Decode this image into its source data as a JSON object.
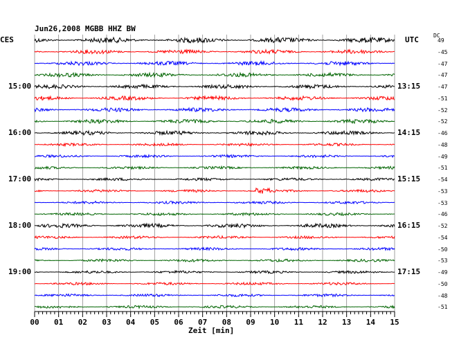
{
  "chart_data": {
    "type": "line",
    "title": "Jun26,2008   MGBB HHZ BW",
    "left_zone": "CES",
    "right_zone": "UTC",
    "dc_header": "DC",
    "xlabel": "Zeit [min]",
    "x_ticks": [
      "00",
      "01",
      "02",
      "03",
      "04",
      "05",
      "06",
      "07",
      "08",
      "09",
      "10",
      "11",
      "12",
      "13",
      "14",
      "15"
    ],
    "xlim": [
      0,
      15
    ],
    "grid": true,
    "trace_colors": [
      "#000000",
      "#ff0000",
      "#0000ff",
      "#006400"
    ],
    "left_hour_labels": [
      "15:00",
      "16:00",
      "17:00",
      "18:00",
      "19:00"
    ],
    "right_hour_labels": [
      "13:15",
      "14:15",
      "15:15",
      "16:15",
      "17:15"
    ],
    "hour_label_rows": [
      4,
      8,
      12,
      16,
      20
    ],
    "dc_offsets": [
      "49",
      "-45",
      "-47",
      "-47",
      "-47",
      "-51",
      "-52",
      "-52",
      "-46",
      "-48",
      "-49",
      "-51",
      "-54",
      "-53",
      "-53",
      "-46",
      "-52",
      "-54",
      "-50",
      "-53",
      "-49",
      "-50",
      "-48",
      "-51"
    ],
    "amplitudes": [
      4,
      3,
      3,
      3,
      3,
      3,
      3,
      3,
      3,
      2,
      2,
      2,
      2,
      2,
      2,
      2,
      3,
      2,
      2,
      2,
      2,
      2,
      2,
      2
    ],
    "event": {
      "row": 13,
      "start_min": 9.2,
      "end_min": 9.8,
      "amplitude": 4
    }
  }
}
